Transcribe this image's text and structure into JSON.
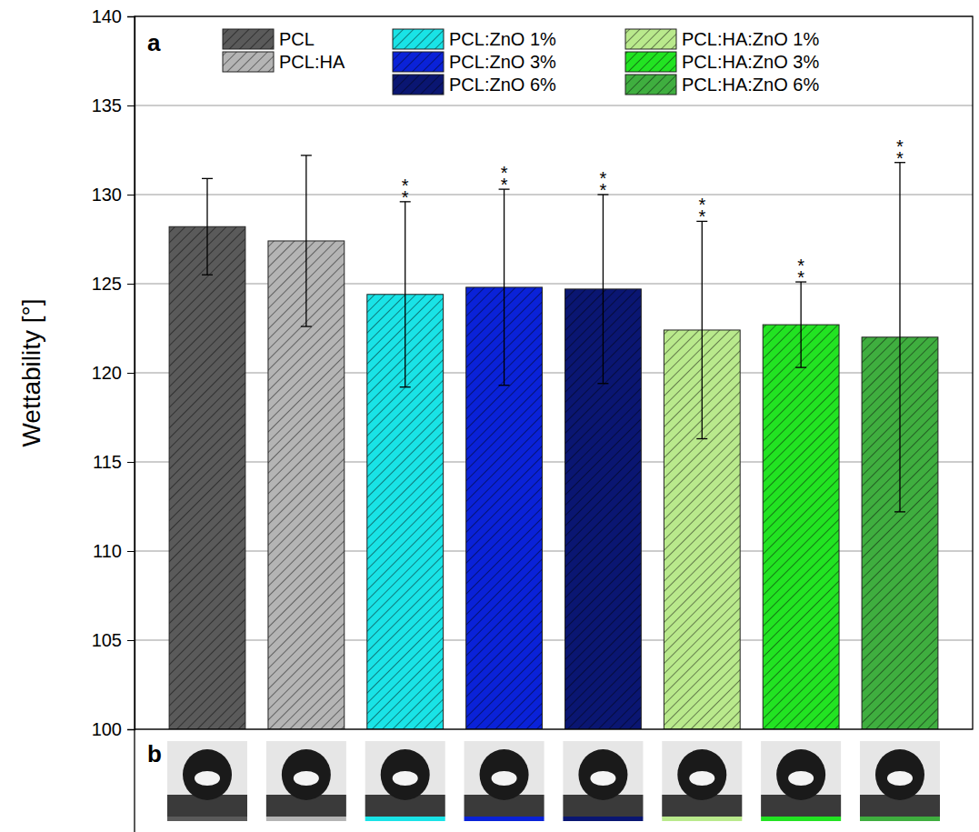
{
  "chart_data": {
    "type": "bar",
    "categories": [
      "PCL",
      "PCL:HA",
      "PCL:ZnO 1%",
      "PCL:ZnO 3%",
      "PCL:ZnO 6%",
      "PCL:HA:ZnO 1%",
      "PCL:HA:ZnO 3%",
      "PCL:HA:ZnO 6%"
    ],
    "values": [
      128.2,
      127.4,
      124.4,
      124.8,
      124.7,
      122.4,
      122.7,
      122.0
    ],
    "errors": [
      2.7,
      4.8,
      5.2,
      5.5,
      5.3,
      6.1,
      2.4,
      9.8
    ],
    "significance": [
      null,
      null,
      "**",
      "**",
      "**",
      "**",
      "**",
      "**"
    ],
    "colors": [
      "#5a5a5a",
      "#b4b4b4",
      "#19e3e6",
      "#0a22d8",
      "#0a1672",
      "#b9e98c",
      "#22e322",
      "#3fae3f"
    ],
    "ylabel": "Wettability [°]",
    "ylim": [
      100,
      140
    ],
    "yticks": [
      100,
      105,
      110,
      115,
      120,
      125,
      130,
      135,
      140
    ],
    "grid": true,
    "legend": "top",
    "tick_labels": "y",
    "panel_labels": [
      "a",
      "b"
    ]
  }
}
